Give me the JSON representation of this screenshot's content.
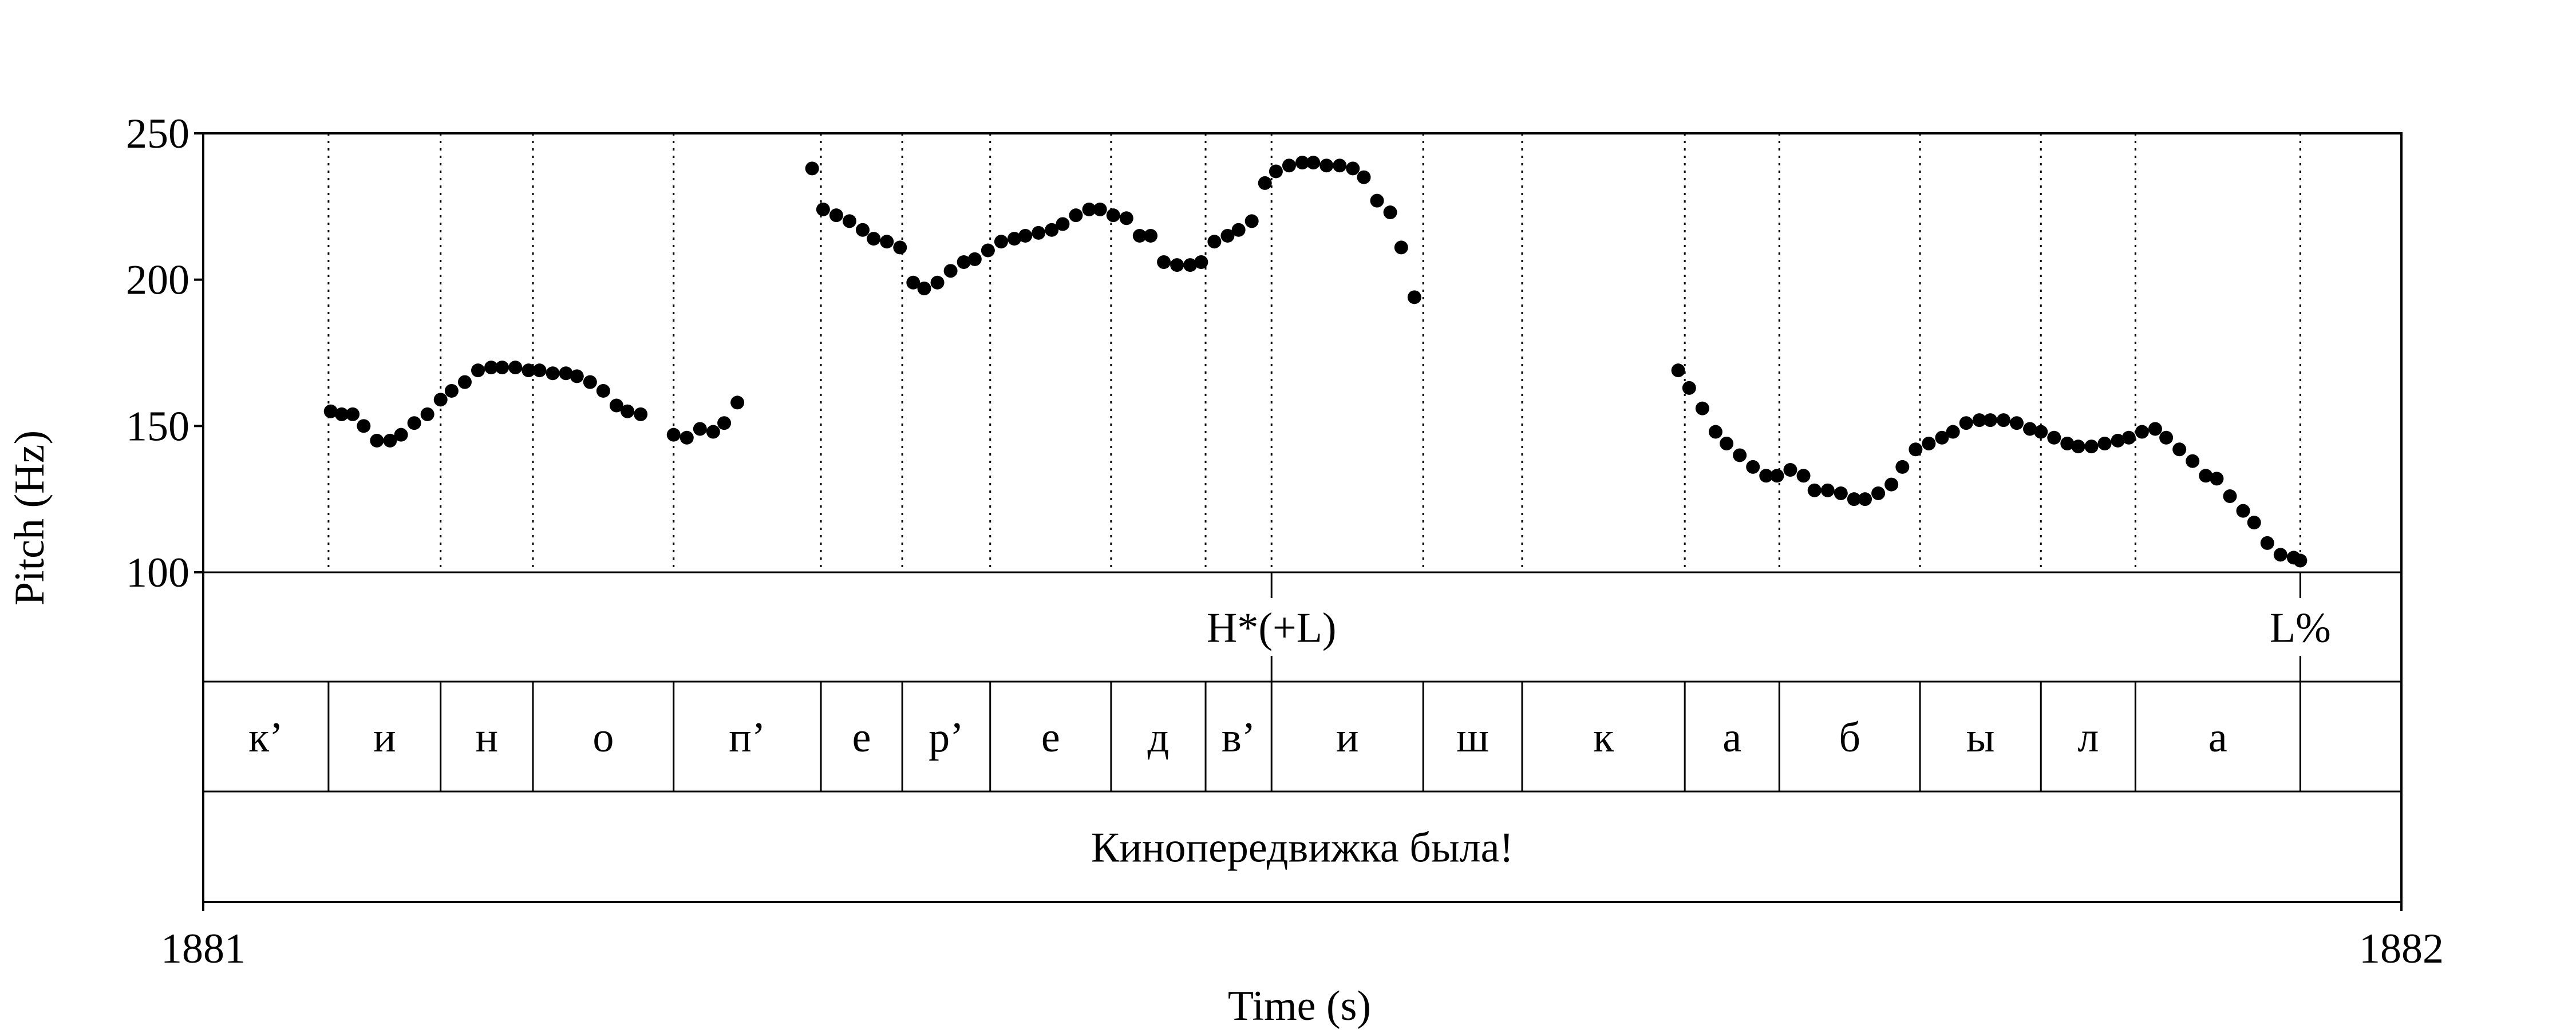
{
  "chart_data": {
    "type": "scatter",
    "xlabel": "Time (s)",
    "ylabel": "Pitch (Hz)",
    "xlim": [
      1881,
      1882
    ],
    "ylim": [
      100,
      250
    ],
    "x_ticks": [
      "1881",
      "1882"
    ],
    "y_ticks": [
      "100",
      "150",
      "200",
      "250"
    ],
    "point_color": "#000000",
    "boundaries": [
      0.057,
      0.108,
      0.15,
      0.214,
      0.281,
      0.318,
      0.358,
      0.413,
      0.456,
      0.486,
      0.555,
      0.6,
      0.674,
      0.717,
      0.781,
      0.836,
      0.879,
      0.954
    ],
    "tones": [
      {
        "label": "H*(+L)",
        "time": 0.486
      },
      {
        "label": "L%",
        "time": 0.954
      }
    ],
    "segments": [
      {
        "label": "к’",
        "start": 0.0,
        "end": 0.057
      },
      {
        "label": "и",
        "start": 0.057,
        "end": 0.108
      },
      {
        "label": "н",
        "start": 0.108,
        "end": 0.15
      },
      {
        "label": "о",
        "start": 0.15,
        "end": 0.214
      },
      {
        "label": "п’",
        "start": 0.214,
        "end": 0.281
      },
      {
        "label": "е",
        "start": 0.281,
        "end": 0.318
      },
      {
        "label": "р’",
        "start": 0.318,
        "end": 0.358
      },
      {
        "label": "е",
        "start": 0.358,
        "end": 0.413
      },
      {
        "label": "д",
        "start": 0.413,
        "end": 0.456
      },
      {
        "label": "в’",
        "start": 0.456,
        "end": 0.486
      },
      {
        "label": "и",
        "start": 0.486,
        "end": 0.555
      },
      {
        "label": "ш",
        "start": 0.555,
        "end": 0.6
      },
      {
        "label": "к",
        "start": 0.6,
        "end": 0.674
      },
      {
        "label": "а",
        "start": 0.674,
        "end": 0.717
      },
      {
        "label": "б",
        "start": 0.717,
        "end": 0.781
      },
      {
        "label": "ы",
        "start": 0.781,
        "end": 0.836
      },
      {
        "label": "л",
        "start": 0.836,
        "end": 0.879
      },
      {
        "label": "а",
        "start": 0.879,
        "end": 0.954
      },
      {
        "label": "",
        "start": 0.954,
        "end": 1.0
      }
    ],
    "sentence": "Кинопередвижка была!",
    "points": [
      [
        0.058,
        155
      ],
      [
        0.063,
        154
      ],
      [
        0.068,
        154
      ],
      [
        0.073,
        150
      ],
      [
        0.079,
        145
      ],
      [
        0.085,
        145
      ],
      [
        0.09,
        147
      ],
      [
        0.096,
        151
      ],
      [
        0.102,
        154
      ],
      [
        0.108,
        159
      ],
      [
        0.113,
        162
      ],
      [
        0.119,
        165
      ],
      [
        0.125,
        169
      ],
      [
        0.131,
        170
      ],
      [
        0.136,
        170
      ],
      [
        0.142,
        170
      ],
      [
        0.148,
        169
      ],
      [
        0.153,
        169
      ],
      [
        0.159,
        168
      ],
      [
        0.165,
        168
      ],
      [
        0.17,
        167
      ],
      [
        0.176,
        165
      ],
      [
        0.182,
        162
      ],
      [
        0.188,
        157
      ],
      [
        0.193,
        155
      ],
      [
        0.199,
        154
      ],
      [
        0.214,
        147
      ],
      [
        0.22,
        146
      ],
      [
        0.226,
        149
      ],
      [
        0.232,
        148
      ],
      [
        0.237,
        151
      ],
      [
        0.243,
        158
      ],
      [
        0.277,
        238
      ],
      [
        0.282,
        224
      ],
      [
        0.288,
        222
      ],
      [
        0.294,
        220
      ],
      [
        0.3,
        217
      ],
      [
        0.305,
        214
      ],
      [
        0.311,
        213
      ],
      [
        0.317,
        211
      ],
      [
        0.323,
        199
      ],
      [
        0.328,
        197
      ],
      [
        0.334,
        199
      ],
      [
        0.34,
        203
      ],
      [
        0.346,
        206
      ],
      [
        0.351,
        207
      ],
      [
        0.357,
        210
      ],
      [
        0.363,
        213
      ],
      [
        0.369,
        214
      ],
      [
        0.374,
        215
      ],
      [
        0.38,
        216
      ],
      [
        0.386,
        217
      ],
      [
        0.391,
        219
      ],
      [
        0.397,
        222
      ],
      [
        0.403,
        224
      ],
      [
        0.408,
        224
      ],
      [
        0.414,
        222
      ],
      [
        0.42,
        221
      ],
      [
        0.426,
        215
      ],
      [
        0.431,
        215
      ],
      [
        0.437,
        206
      ],
      [
        0.443,
        205
      ],
      [
        0.449,
        205
      ],
      [
        0.454,
        206
      ],
      [
        0.46,
        213
      ],
      [
        0.466,
        215
      ],
      [
        0.471,
        217
      ],
      [
        0.477,
        220
      ],
      [
        0.483,
        233
      ],
      [
        0.488,
        237
      ],
      [
        0.494,
        239
      ],
      [
        0.5,
        240
      ],
      [
        0.505,
        240
      ],
      [
        0.511,
        239
      ],
      [
        0.517,
        239
      ],
      [
        0.523,
        238
      ],
      [
        0.528,
        235
      ],
      [
        0.534,
        227
      ],
      [
        0.54,
        223
      ],
      [
        0.545,
        211
      ],
      [
        0.551,
        194
      ],
      [
        0.671,
        169
      ],
      [
        0.676,
        163
      ],
      [
        0.682,
        156
      ],
      [
        0.688,
        148
      ],
      [
        0.693,
        144
      ],
      [
        0.699,
        140
      ],
      [
        0.705,
        136
      ],
      [
        0.711,
        133
      ],
      [
        0.716,
        133
      ],
      [
        0.722,
        135
      ],
      [
        0.728,
        133
      ],
      [
        0.733,
        128
      ],
      [
        0.739,
        128
      ],
      [
        0.745,
        127
      ],
      [
        0.751,
        125
      ],
      [
        0.756,
        125
      ],
      [
        0.762,
        127
      ],
      [
        0.768,
        130
      ],
      [
        0.773,
        136
      ],
      [
        0.779,
        142
      ],
      [
        0.785,
        144
      ],
      [
        0.791,
        146
      ],
      [
        0.796,
        148
      ],
      [
        0.802,
        151
      ],
      [
        0.808,
        152
      ],
      [
        0.813,
        152
      ],
      [
        0.819,
        152
      ],
      [
        0.825,
        151
      ],
      [
        0.831,
        149
      ],
      [
        0.836,
        148
      ],
      [
        0.842,
        146
      ],
      [
        0.848,
        144
      ],
      [
        0.853,
        143
      ],
      [
        0.859,
        143
      ],
      [
        0.865,
        144
      ],
      [
        0.871,
        145
      ],
      [
        0.876,
        146
      ],
      [
        0.882,
        148
      ],
      [
        0.888,
        149
      ],
      [
        0.893,
        146
      ],
      [
        0.899,
        142
      ],
      [
        0.905,
        138
      ],
      [
        0.911,
        133
      ],
      [
        0.916,
        132
      ],
      [
        0.922,
        126
      ],
      [
        0.928,
        121
      ],
      [
        0.933,
        117
      ],
      [
        0.939,
        110
      ],
      [
        0.945,
        106
      ],
      [
        0.951,
        105
      ],
      [
        0.954,
        104
      ]
    ]
  }
}
